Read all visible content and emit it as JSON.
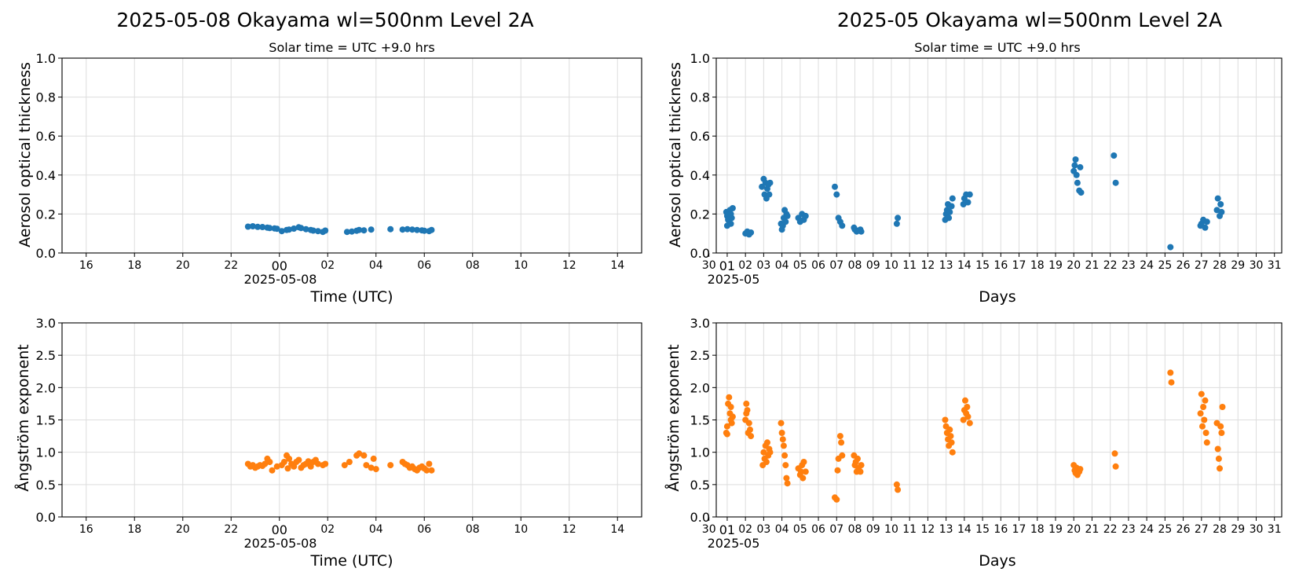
{
  "colors": {
    "aot": "#1f77b4",
    "angstrom": "#ff7f0e",
    "grid": "#dddddd"
  },
  "left_column": {
    "title": "2025-05-08  Okayama  wl=500nm  Level 2A",
    "subtitle": "Solar time = UTC +9.0 hrs",
    "xlabel": "Time (UTC)",
    "date_label": "2025-05-08",
    "x_ticks": [
      "16",
      "18",
      "20",
      "22",
      "00",
      "02",
      "04",
      "06",
      "08",
      "10",
      "12",
      "14"
    ]
  },
  "right_column": {
    "title": "2025-05  Okayama  wl=500nm  Level 2A",
    "subtitle": "Solar time = UTC +9.0 hrs",
    "xlabel": "Days",
    "date_label": "2025-05",
    "x_ticks": [
      "30",
      "01",
      "02",
      "03",
      "04",
      "05",
      "06",
      "07",
      "08",
      "09",
      "10",
      "11",
      "12",
      "13",
      "14",
      "15",
      "16",
      "17",
      "18",
      "19",
      "20",
      "21",
      "22",
      "23",
      "24",
      "25",
      "26",
      "27",
      "28",
      "29",
      "30",
      "31"
    ]
  },
  "chart_data": [
    {
      "type": "scatter",
      "title": "2025-05-08  Okayama  wl=500nm  Level 2A",
      "subtitle": "Solar time = UTC +9.0 hrs",
      "xlabel": "Time (UTC)",
      "ylabel": "Aerosol optical thickness",
      "x_unit": "hours relative to 2025-05-08 00:00 UTC",
      "xlim": [
        -9,
        15
      ],
      "ylim": [
        0,
        1.0
      ],
      "y_ticks": [
        0.0,
        0.2,
        0.4,
        0.6,
        0.8,
        1.0
      ],
      "grid": true,
      "series": [
        {
          "color": "#1f77b4",
          "x": [
            -1.3,
            -1.1,
            -0.9,
            -0.7,
            -0.5,
            -0.4,
            -0.2,
            -0.1,
            0.1,
            0.3,
            0.4,
            0.6,
            0.8,
            0.9,
            1.1,
            1.3,
            1.4,
            1.6,
            1.8,
            1.9,
            2.8,
            3.0,
            3.2,
            3.3,
            3.5,
            3.8,
            4.6,
            5.1,
            5.3,
            5.5,
            5.7,
            5.9,
            6.0,
            6.2,
            6.3
          ],
          "y": [
            0.135,
            0.137,
            0.134,
            0.133,
            0.13,
            0.128,
            0.126,
            0.124,
            0.112,
            0.118,
            0.12,
            0.125,
            0.132,
            0.128,
            0.122,
            0.118,
            0.115,
            0.112,
            0.108,
            0.115,
            0.108,
            0.11,
            0.114,
            0.118,
            0.116,
            0.12,
            0.122,
            0.12,
            0.122,
            0.12,
            0.118,
            0.116,
            0.114,
            0.112,
            0.118
          ]
        }
      ]
    },
    {
      "type": "scatter",
      "title": "2025-05  Okayama  wl=500nm  Level 2A",
      "subtitle": "Solar time = UTC +9.0 hrs",
      "xlabel": "Days",
      "ylabel": "Aerosol optical thickness",
      "x_unit": "day of May 2025 (fractional)",
      "xlim": [
        0.4,
        31.4
      ],
      "ylim": [
        0,
        1.0
      ],
      "y_ticks": [
        0.0,
        0.2,
        0.4,
        0.6,
        0.8,
        1.0
      ],
      "grid": true,
      "series": [
        {
          "color": "#1f77b4",
          "x": [
            0.95,
            1.0,
            1.05,
            1.1,
            1.15,
            1.2,
            1.25,
            1.3,
            1.0,
            1.2,
            2.0,
            2.1,
            2.2,
            2.3,
            2.9,
            3.0,
            3.05,
            3.1,
            3.15,
            3.2,
            3.25,
            3.3,
            3.35,
            3.95,
            4.0,
            4.05,
            4.1,
            4.15,
            4.2,
            4.25,
            4.3,
            4.9,
            5.0,
            5.1,
            5.2,
            5.3,
            6.9,
            7.0,
            7.1,
            7.2,
            7.3,
            7.95,
            8.0,
            8.1,
            8.2,
            8.3,
            8.35,
            10.3,
            10.35,
            12.95,
            13.0,
            13.05,
            13.1,
            13.15,
            13.2,
            13.3,
            13.35,
            13.95,
            14.0,
            14.1,
            14.2,
            14.3,
            20.0,
            20.05,
            20.1,
            20.15,
            20.2,
            20.3,
            20.35,
            20.4,
            22.2,
            22.3,
            25.3,
            26.95,
            27.0,
            27.1,
            27.2,
            27.3,
            27.85,
            27.9,
            28.0,
            28.05,
            28.1
          ],
          "y": [
            0.21,
            0.19,
            0.17,
            0.2,
            0.22,
            0.15,
            0.18,
            0.23,
            0.14,
            0.2,
            0.1,
            0.11,
            0.095,
            0.105,
            0.34,
            0.38,
            0.3,
            0.36,
            0.28,
            0.33,
            0.35,
            0.3,
            0.36,
            0.15,
            0.12,
            0.14,
            0.18,
            0.22,
            0.16,
            0.2,
            0.19,
            0.18,
            0.16,
            0.2,
            0.17,
            0.19,
            0.34,
            0.3,
            0.18,
            0.16,
            0.14,
            0.13,
            0.12,
            0.11,
            0.115,
            0.12,
            0.11,
            0.15,
            0.18,
            0.17,
            0.2,
            0.22,
            0.25,
            0.18,
            0.21,
            0.24,
            0.28,
            0.25,
            0.28,
            0.3,
            0.26,
            0.3,
            0.42,
            0.45,
            0.48,
            0.4,
            0.36,
            0.32,
            0.44,
            0.31,
            0.5,
            0.36,
            0.03,
            0.14,
            0.15,
            0.17,
            0.13,
            0.16,
            0.22,
            0.28,
            0.19,
            0.25,
            0.21
          ]
        }
      ]
    },
    {
      "type": "scatter",
      "title": "",
      "xlabel": "Time (UTC)",
      "ylabel": "Ångström exponent",
      "x_unit": "hours relative to 2025-05-08 00:00 UTC",
      "xlim": [
        -9,
        15
      ],
      "ylim": [
        0,
        3.0
      ],
      "y_ticks": [
        0.0,
        0.5,
        1.0,
        1.5,
        2.0,
        2.5,
        3.0
      ],
      "grid": true,
      "series": [
        {
          "color": "#ff7f0e",
          "x": [
            -1.3,
            -1.2,
            -1.1,
            -1.0,
            -0.9,
            -0.8,
            -0.7,
            -0.6,
            -0.5,
            -0.4,
            -0.3,
            -0.1,
            0.1,
            0.2,
            0.3,
            0.35,
            0.4,
            0.5,
            0.6,
            0.7,
            0.8,
            0.9,
            1.0,
            1.1,
            1.2,
            1.3,
            1.4,
            1.5,
            1.6,
            1.8,
            1.9,
            2.7,
            2.9,
            3.2,
            3.3,
            3.5,
            3.6,
            3.8,
            3.9,
            4.0,
            4.6,
            5.1,
            5.2,
            5.3,
            5.4,
            5.5,
            5.6,
            5.7,
            5.8,
            5.9,
            6.0,
            6.1,
            6.2,
            6.3
          ],
          "y": [
            0.82,
            0.78,
            0.8,
            0.76,
            0.78,
            0.8,
            0.79,
            0.82,
            0.9,
            0.85,
            0.72,
            0.78,
            0.8,
            0.85,
            0.95,
            0.75,
            0.9,
            0.82,
            0.78,
            0.85,
            0.88,
            0.76,
            0.8,
            0.82,
            0.86,
            0.78,
            0.85,
            0.88,
            0.82,
            0.8,
            0.82,
            0.8,
            0.85,
            0.95,
            0.98,
            0.95,
            0.8,
            0.76,
            0.9,
            0.74,
            0.8,
            0.85,
            0.82,
            0.8,
            0.76,
            0.78,
            0.74,
            0.72,
            0.76,
            0.78,
            0.75,
            0.72,
            0.82,
            0.72
          ]
        }
      ]
    },
    {
      "type": "scatter",
      "title": "",
      "xlabel": "Days",
      "ylabel": "Ångström exponent",
      "x_unit": "day of May 2025 (fractional)",
      "xlim": [
        0.4,
        31.4
      ],
      "ylim": [
        0,
        3.0
      ],
      "y_ticks": [
        0.0,
        0.5,
        1.0,
        1.5,
        2.0,
        2.5,
        3.0
      ],
      "grid": true,
      "series": [
        {
          "color": "#ff7f0e",
          "x": [
            0.95,
            1.0,
            1.05,
            1.1,
            1.15,
            1.2,
            1.25,
            1.3,
            1.0,
            1.2,
            2.0,
            2.05,
            2.1,
            2.15,
            2.2,
            2.25,
            2.3,
            2.05,
            2.95,
            3.0,
            3.05,
            3.1,
            3.15,
            3.2,
            3.25,
            3.3,
            3.35,
            3.95,
            4.0,
            4.05,
            4.1,
            4.15,
            4.2,
            4.25,
            4.3,
            4.9,
            5.0,
            5.05,
            5.1,
            5.15,
            5.2,
            5.3,
            6.9,
            7.0,
            7.05,
            7.1,
            7.2,
            7.25,
            7.3,
            7.95,
            8.0,
            8.05,
            8.1,
            8.15,
            8.2,
            8.3,
            8.35,
            10.3,
            10.35,
            12.95,
            13.0,
            13.05,
            13.1,
            13.15,
            13.2,
            13.25,
            13.3,
            13.35,
            13.95,
            14.0,
            14.05,
            14.1,
            14.15,
            14.2,
            14.3,
            20.0,
            20.05,
            20.1,
            20.15,
            20.2,
            20.3,
            20.35,
            22.25,
            22.3,
            25.3,
            25.35,
            26.95,
            27.0,
            27.05,
            27.1,
            27.15,
            27.2,
            27.25,
            27.3,
            27.85,
            27.9,
            27.95,
            28.0,
            28.05,
            28.1,
            28.15
          ],
          "y": [
            1.3,
            1.4,
            1.75,
            1.85,
            1.6,
            1.5,
            1.45,
            1.55,
            1.28,
            1.7,
            1.5,
            1.75,
            1.65,
            1.3,
            1.45,
            1.35,
            1.25,
            1.6,
            0.8,
            1.0,
            0.9,
            1.1,
            0.85,
            1.15,
            0.95,
            1.05,
            1.0,
            1.45,
            1.3,
            1.2,
            1.1,
            0.95,
            0.8,
            0.6,
            0.52,
            0.75,
            0.65,
            0.7,
            0.8,
            0.6,
            0.85,
            0.7,
            0.3,
            0.27,
            0.72,
            0.9,
            1.25,
            1.15,
            0.95,
            0.95,
            0.8,
            0.85,
            0.7,
            0.9,
            0.75,
            0.7,
            0.8,
            0.5,
            0.42,
            1.5,
            1.4,
            1.3,
            1.2,
            1.1,
            1.35,
            1.25,
            1.15,
            1.0,
            1.5,
            1.65,
            1.8,
            1.6,
            1.7,
            1.55,
            1.45,
            0.8,
            0.72,
            0.68,
            0.76,
            0.65,
            0.7,
            0.74,
            0.98,
            0.78,
            2.23,
            2.08,
            1.6,
            1.9,
            1.4,
            1.7,
            1.5,
            1.8,
            1.3,
            1.15,
            1.45,
            1.05,
            0.9,
            0.75,
            1.4,
            1.3,
            1.7
          ]
        }
      ]
    }
  ]
}
